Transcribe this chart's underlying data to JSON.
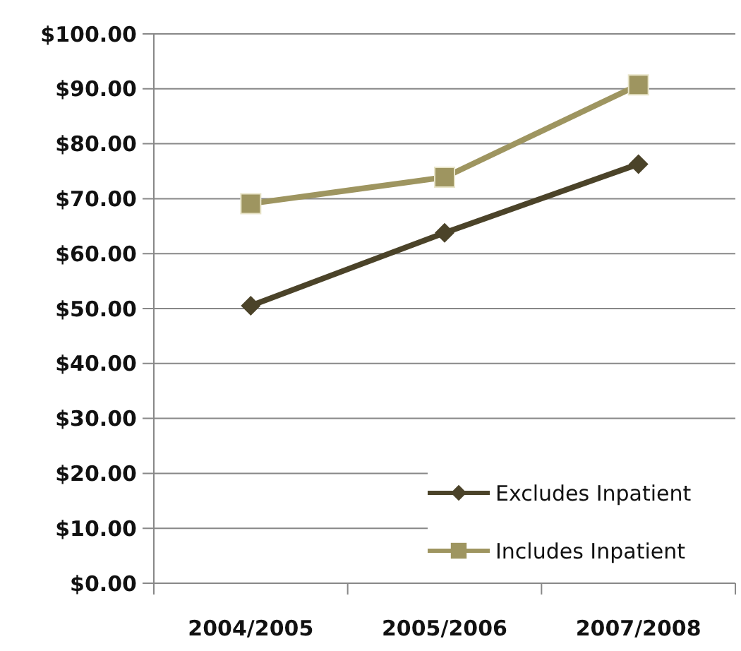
{
  "chart_data": {
    "type": "line",
    "categories": [
      "2004/2005",
      "2005/2006",
      "2007/2008"
    ],
    "series": [
      {
        "name": "Excludes Inpatient",
        "color": "#4b4329",
        "marker": "diamond",
        "values": [
          50.5,
          63.8,
          76.3
        ]
      },
      {
        "name": "Includes Inpatient",
        "color": "#9e9560",
        "marker": "square",
        "values": [
          69.1,
          73.9,
          90.7
        ]
      }
    ],
    "ylim": [
      0,
      100
    ],
    "yticks": [
      {
        "value": 0,
        "label": "$0.00"
      },
      {
        "value": 10,
        "label": "$10.00"
      },
      {
        "value": 20,
        "label": "$20.00"
      },
      {
        "value": 30,
        "label": "$30.00"
      },
      {
        "value": 40,
        "label": "$40.00"
      },
      {
        "value": 50,
        "label": "$50.00"
      },
      {
        "value": 60,
        "label": "$60.00"
      },
      {
        "value": 70,
        "label": "$70.00"
      },
      {
        "value": 80,
        "label": "$80.00"
      },
      {
        "value": 90,
        "label": "$90.00"
      },
      {
        "value": 100,
        "label": "$100.00"
      }
    ],
    "grid": "y",
    "legend": "bottom right",
    "line_style": "solid"
  }
}
